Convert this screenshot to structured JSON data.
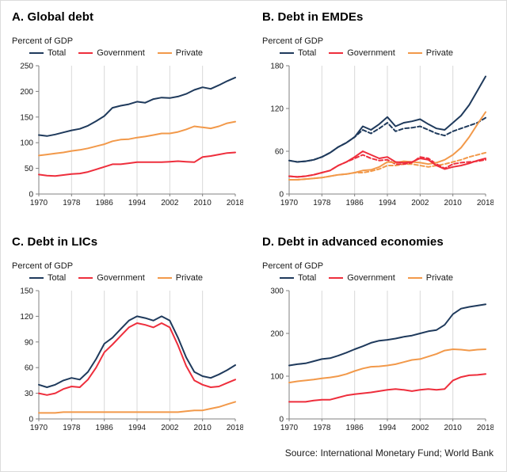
{
  "source_note": "Source: International Monetary Fund; World Bank",
  "colors": {
    "total": "#1f3a5c",
    "government": "#ee2e3c",
    "private": "#f2994a",
    "grid": "#d9d9d9",
    "axis": "#808080",
    "text": "#1a1a1a"
  },
  "x_years": [
    1970,
    1972,
    1974,
    1976,
    1978,
    1980,
    1982,
    1984,
    1986,
    1988,
    1990,
    1992,
    1994,
    1996,
    1998,
    2000,
    2002,
    2004,
    2006,
    2008,
    2010,
    2012,
    2014,
    2016,
    2018
  ],
  "x_ticks": [
    1970,
    1978,
    1986,
    1994,
    2002,
    2010,
    2018
  ],
  "chart_data": [
    {
      "type": "line",
      "title": "A. Global debt",
      "ylabel": "Percent of GDP",
      "xlabel": "",
      "ylim": [
        0,
        250
      ],
      "yticks": [
        0,
        50,
        100,
        150,
        200,
        250
      ],
      "grid": "vertical",
      "legend_position": "top",
      "legend": [
        "Total",
        "Government",
        "Private"
      ],
      "series": [
        {
          "name": "Total",
          "color_key": "total",
          "dashed": false,
          "in_legend": true,
          "values": [
            115,
            113,
            116,
            120,
            124,
            127,
            133,
            142,
            152,
            168,
            172,
            175,
            180,
            178,
            185,
            188,
            187,
            190,
            195,
            203,
            208,
            205,
            212,
            220,
            227
          ]
        },
        {
          "name": "Government",
          "color_key": "government",
          "dashed": false,
          "in_legend": true,
          "values": [
            38,
            36,
            35,
            37,
            39,
            40,
            43,
            48,
            53,
            58,
            58,
            60,
            62,
            62,
            62,
            62,
            63,
            64,
            63,
            62,
            72,
            74,
            77,
            80,
            81
          ]
        },
        {
          "name": "Private",
          "color_key": "private",
          "dashed": false,
          "in_legend": true,
          "values": [
            75,
            77,
            79,
            81,
            84,
            86,
            89,
            93,
            97,
            103,
            106,
            107,
            110,
            112,
            115,
            118,
            118,
            121,
            126,
            132,
            130,
            128,
            132,
            138,
            141
          ]
        }
      ]
    },
    {
      "type": "line",
      "title": "B. Debt in EMDEs",
      "ylabel": "Percent of GDP",
      "xlabel": "",
      "ylim": [
        0,
        180
      ],
      "yticks": [
        0,
        60,
        120,
        180
      ],
      "grid": "vertical",
      "legend_position": "top",
      "legend": [
        "Total",
        "Government",
        "Private"
      ],
      "series": [
        {
          "name": "Total",
          "color_key": "total",
          "dashed": false,
          "in_legend": true,
          "values": [
            47,
            45,
            46,
            48,
            52,
            58,
            66,
            72,
            80,
            95,
            90,
            98,
            108,
            95,
            100,
            102,
            105,
            98,
            92,
            90,
            100,
            110,
            125,
            145,
            165
          ]
        },
        {
          "name": "Government",
          "color_key": "government",
          "dashed": false,
          "in_legend": true,
          "values": [
            25,
            24,
            25,
            27,
            30,
            33,
            40,
            45,
            52,
            60,
            55,
            50,
            52,
            45,
            44,
            45,
            50,
            48,
            40,
            35,
            38,
            40,
            43,
            47,
            50
          ]
        },
        {
          "name": "Private",
          "color_key": "private",
          "dashed": false,
          "in_legend": true,
          "values": [
            20,
            20,
            21,
            22,
            23,
            25,
            27,
            28,
            30,
            33,
            34,
            38,
            45,
            44,
            46,
            45,
            44,
            42,
            44,
            48,
            55,
            65,
            80,
            98,
            115
          ]
        },
        {
          "name": "Total (dashed)",
          "color_key": "total",
          "dashed": true,
          "in_legend": false,
          "values": [
            47,
            45,
            46,
            48,
            52,
            58,
            66,
            72,
            80,
            90,
            85,
            92,
            100,
            88,
            92,
            93,
            95,
            90,
            85,
            82,
            88,
            92,
            96,
            100,
            107
          ]
        },
        {
          "name": "Government (dashed)",
          "color_key": "government",
          "dashed": true,
          "in_legend": false,
          "values": [
            25,
            24,
            25,
            27,
            30,
            33,
            40,
            45,
            50,
            55,
            50,
            47,
            48,
            42,
            42,
            44,
            52,
            50,
            42,
            36,
            42,
            44,
            45,
            46,
            48
          ]
        },
        {
          "name": "Private (dashed)",
          "color_key": "private",
          "dashed": true,
          "in_legend": false,
          "values": [
            20,
            20,
            21,
            22,
            23,
            25,
            27,
            28,
            30,
            30,
            32,
            35,
            40,
            40,
            42,
            42,
            40,
            38,
            40,
            42,
            45,
            48,
            52,
            55,
            58
          ]
        }
      ]
    },
    {
      "type": "line",
      "title": "C. Debt in LICs",
      "ylabel": "Percent of GDP",
      "xlabel": "",
      "ylim": [
        0,
        150
      ],
      "yticks": [
        0,
        30,
        60,
        90,
        120,
        150
      ],
      "grid": "vertical",
      "legend_position": "top",
      "legend": [
        "Total",
        "Government",
        "Private"
      ],
      "series": [
        {
          "name": "Total",
          "color_key": "total",
          "dashed": false,
          "in_legend": true,
          "values": [
            40,
            37,
            40,
            45,
            48,
            46,
            55,
            70,
            88,
            95,
            105,
            115,
            120,
            118,
            115,
            120,
            115,
            95,
            72,
            55,
            50,
            48,
            52,
            57,
            63
          ]
        },
        {
          "name": "Government",
          "color_key": "government",
          "dashed": false,
          "in_legend": true,
          "values": [
            30,
            28,
            30,
            35,
            38,
            37,
            46,
            60,
            78,
            87,
            97,
            107,
            112,
            110,
            107,
            112,
            107,
            86,
            62,
            45,
            40,
            37,
            38,
            42,
            46
          ]
        },
        {
          "name": "Private",
          "color_key": "private",
          "dashed": false,
          "in_legend": true,
          "values": [
            7,
            7,
            7,
            8,
            8,
            8,
            8,
            8,
            8,
            8,
            8,
            8,
            8,
            8,
            8,
            8,
            8,
            8,
            9,
            10,
            10,
            12,
            14,
            17,
            20
          ]
        }
      ]
    },
    {
      "type": "line",
      "title": "D. Debt in advanced economies",
      "ylabel": "Percent of GDP",
      "xlabel": "",
      "ylim": [
        0,
        300
      ],
      "yticks": [
        0,
        100,
        200,
        300
      ],
      "grid": "vertical",
      "legend_position": "top",
      "legend": [
        "Total",
        "Government",
        "Private"
      ],
      "series": [
        {
          "name": "Total",
          "color_key": "total",
          "dashed": false,
          "in_legend": true,
          "values": [
            125,
            128,
            130,
            135,
            140,
            142,
            148,
            155,
            163,
            170,
            178,
            183,
            185,
            188,
            192,
            195,
            200,
            205,
            208,
            220,
            245,
            258,
            262,
            265,
            268
          ]
        },
        {
          "name": "Government",
          "color_key": "government",
          "dashed": false,
          "in_legend": true,
          "values": [
            40,
            40,
            40,
            43,
            45,
            45,
            50,
            55,
            58,
            60,
            62,
            65,
            68,
            70,
            68,
            65,
            68,
            70,
            68,
            70,
            90,
            98,
            102,
            103,
            105
          ]
        },
        {
          "name": "Private",
          "color_key": "private",
          "dashed": false,
          "in_legend": true,
          "values": [
            85,
            88,
            90,
            92,
            95,
            97,
            100,
            105,
            112,
            118,
            122,
            123,
            125,
            128,
            133,
            138,
            140,
            146,
            152,
            160,
            163,
            162,
            160,
            162,
            163
          ]
        }
      ]
    }
  ]
}
